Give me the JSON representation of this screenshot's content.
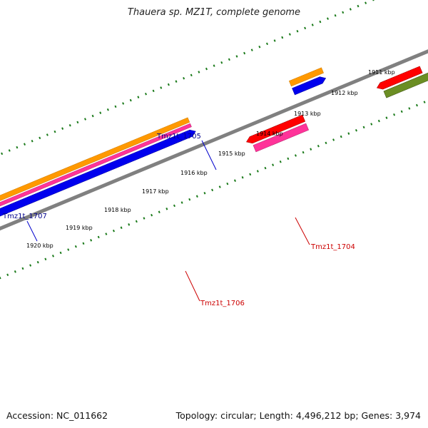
{
  "title": "Thauera sp. MZ1T, complete genome",
  "footer": {
    "accession": "Accession: NC_011662",
    "stats": "Topology: circular; Length: 4,496,212 bp; Genes: 3,974"
  },
  "scale_ticks": [
    {
      "label": "1911 kbp",
      "color": "#000000"
    },
    {
      "label": "1912 kbp",
      "color": "#000000"
    },
    {
      "label": "1913 kbp",
      "color": "#000000"
    },
    {
      "label": "1914 kbp",
      "color": "#000000"
    },
    {
      "label": "1915 kbp",
      "color": "#000000"
    },
    {
      "label": "1916 kbp",
      "color": "#000000"
    },
    {
      "label": "1917 kbp",
      "color": "#000000"
    },
    {
      "label": "1918 kbp",
      "color": "#000000"
    },
    {
      "label": "1919 kbp",
      "color": "#000000"
    },
    {
      "label": "1920 kbp",
      "color": "#000000"
    }
  ],
  "gene_labels": [
    {
      "label": "Tmz1t_1705",
      "color": "#00008b"
    },
    {
      "label": "Tmz1t_1707",
      "color": "#00008b"
    },
    {
      "label": "Tmz1t_1704",
      "color": "#cc0000"
    },
    {
      "label": "Tmz1t_1706",
      "color": "#cc0000"
    }
  ],
  "colors": {
    "backbone": "#808080",
    "dots": "#1a7a1a",
    "orange": "#ff9900",
    "pink": "#ff3399",
    "blue": "#0000ee",
    "red": "#ff0000",
    "olive": "#6b8e23",
    "steelblue": "#4f86c6",
    "gray": "#666666"
  }
}
